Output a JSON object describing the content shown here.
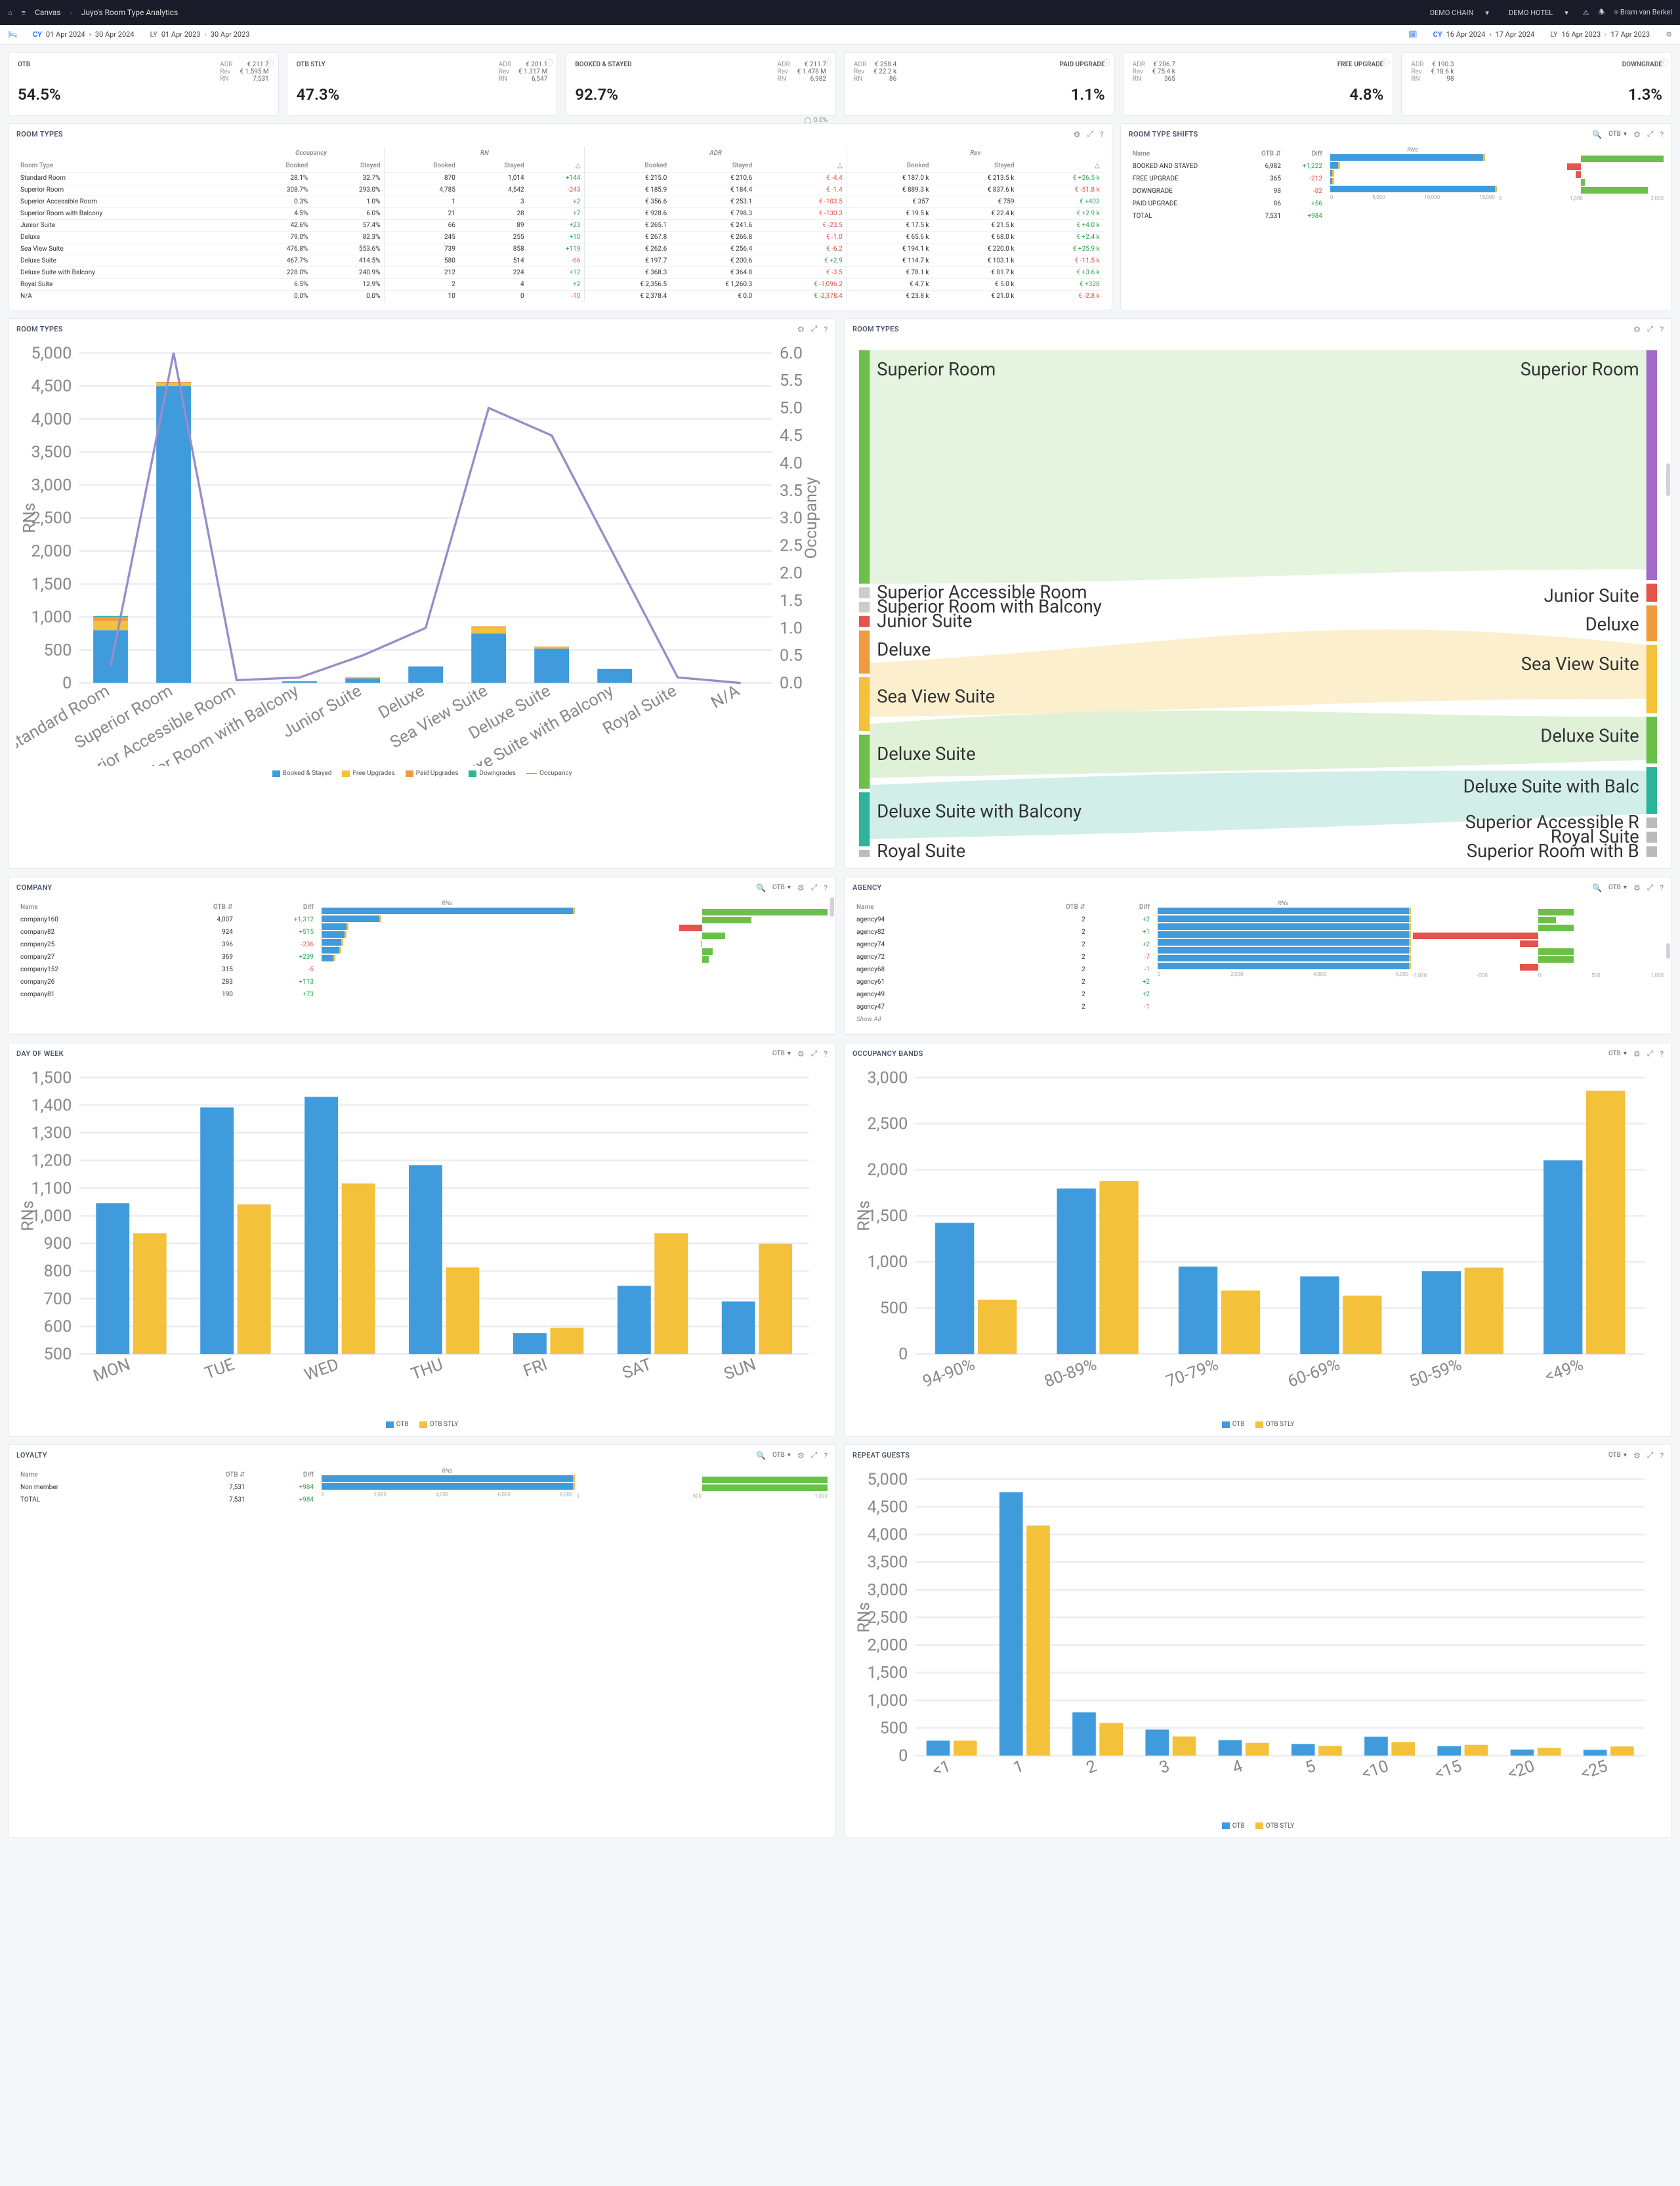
{
  "colors": {
    "blue": "#3f9bdc",
    "yellow": "#f3c13a",
    "teal": "#2fb39a",
    "purple": "#9a8cc8",
    "red": "#e2544c",
    "green": "#6cc04a",
    "grid": "#eceef4",
    "orange": "#f29b3e",
    "violet": "#a06ac6"
  },
  "topbar": {
    "canvas": "Canvas",
    "title": "Juyo's Room Type Analytics",
    "chain": "DEMO CHAIN",
    "hotel": "DEMO HOTEL",
    "user": "Bram van Berkel"
  },
  "datebar": {
    "cy1_label": "CY",
    "cy1_from": "01 Apr 2024",
    "cy1_to": "30 Apr 2024",
    "ly1_label": "LY",
    "ly1_from": "01 Apr 2023",
    "ly1_to": "30 Apr 2023",
    "cy2_label": "CY",
    "cy2_from": "16 Apr 2024",
    "cy2_to": "17 Apr 2024",
    "ly2_label": "LY",
    "ly2_from": "16 Apr 2023",
    "ly2_to": "17 Apr 2023"
  },
  "kpi": [
    {
      "name": "OTB",
      "value": "54.5%",
      "adr": "€ 211.7",
      "rev": "€ 1.595 M",
      "rn": "7,531"
    },
    {
      "name": "OTB STLY",
      "value": "47.3%",
      "adr": "€ 201.1",
      "rev": "€ 1.317 M",
      "rn": "6,547"
    },
    {
      "name": "BOOKED & STAYED",
      "value": "92.7%",
      "adr": "€ 211.7",
      "rev": "€ 1.478 M",
      "rn": "6,982"
    },
    {
      "name": "PAID UPGRADE",
      "value": "1.1%",
      "adr": "€ 258.4",
      "rev": "€ 22.2 k",
      "rn": "86"
    },
    {
      "name": "FREE UPGRADE",
      "value": "4.8%",
      "adr": "€ 206.7",
      "rev": "€ 75.4 k",
      "rn": "365"
    },
    {
      "name": "DOWNGRADE",
      "value": "1.3%",
      "adr": "€ 190.3",
      "rev": "€ 18.6 k",
      "rn": "98"
    }
  ],
  "occ_badge": "0.0%",
  "roomtypes_table": {
    "title": "ROOM TYPES",
    "groups": [
      "Occupancy",
      "RN",
      "ADR",
      "Rev"
    ],
    "headers": [
      "Room Type",
      "Booked",
      "Stayed",
      "Booked",
      "Stayed",
      "△",
      "Booked",
      "Stayed",
      "△",
      "Booked",
      "Stayed",
      "△"
    ],
    "rows": [
      [
        "Standard Room",
        "28.1%",
        "32.7%",
        "870",
        "1,014",
        "+144",
        "€ 215.0",
        "€ 210.6",
        "€ -4.4",
        "€ 187.0 k",
        "€ 213.5 k",
        "€ +26.5 k"
      ],
      [
        "Superior Room",
        "308.7%",
        "293.0%",
        "4,785",
        "4,542",
        "-243",
        "€ 185.9",
        "€ 184.4",
        "€ -1.4",
        "€ 889.3 k",
        "€ 837.6 k",
        "€ -51.8 k"
      ],
      [
        "Superior Accessible Room",
        "0.3%",
        "1.0%",
        "1",
        "3",
        "+2",
        "€ 356.6",
        "€ 253.1",
        "€ -103.5",
        "€ 357",
        "€ 759",
        "€ +403"
      ],
      [
        "Superior Room with Balcony",
        "4.5%",
        "6.0%",
        "21",
        "28",
        "+7",
        "€ 928.6",
        "€ 798.3",
        "€ -130.3",
        "€ 19.5 k",
        "€ 22.4 k",
        "€ +2.9 k"
      ],
      [
        "Junior Suite",
        "42.6%",
        "57.4%",
        "66",
        "89",
        "+23",
        "€ 265.1",
        "€ 241.6",
        "€ -23.5",
        "€ 17.5 k",
        "€ 21.5 k",
        "€ +4.0 k"
      ],
      [
        "Deluxe",
        "79.0%",
        "82.3%",
        "245",
        "255",
        "+10",
        "€ 267.8",
        "€ 266.8",
        "€ -1.0",
        "€ 65.6 k",
        "€ 68.0 k",
        "€ +2.4 k"
      ],
      [
        "Sea View Suite",
        "476.8%",
        "553.6%",
        "739",
        "858",
        "+119",
        "€ 262.6",
        "€ 256.4",
        "€ -6.2",
        "€ 194.1 k",
        "€ 220.0 k",
        "€ +25.9 k"
      ],
      [
        "Deluxe Suite",
        "467.7%",
        "414.5%",
        "580",
        "514",
        "-66",
        "€ 197.7",
        "€ 200.6",
        "€ +2.9",
        "€ 114.7 k",
        "€ 103.1 k",
        "€ -11.5 k"
      ],
      [
        "Deluxe Suite with Balcony",
        "228.0%",
        "240.9%",
        "212",
        "224",
        "+12",
        "€ 368.3",
        "€ 364.8",
        "€ -3.5",
        "€ 78.1 k",
        "€ 81.7 k",
        "€ +3.6 k"
      ],
      [
        "Royal Suite",
        "6.5%",
        "12.9%",
        "2",
        "4",
        "+2",
        "€ 2,356.5",
        "€ 1,260.3",
        "€ -1,096.2",
        "€ 4.7 k",
        "€ 5.0 k",
        "€ +328"
      ],
      [
        "N/A",
        "0.0%",
        "0.0%",
        "10",
        "0",
        "-10",
        "€ 2,378.4",
        "€ 0.0",
        "€ -2,378.4",
        "€ 23.8 k",
        "€ 21.0 k",
        "€ -2.8 k"
      ]
    ],
    "delta_sign": [
      [
        true,
        false,
        true
      ],
      [
        false,
        false,
        false
      ],
      [
        true,
        false,
        true
      ],
      [
        true,
        false,
        true
      ],
      [
        true,
        false,
        true
      ],
      [
        true,
        false,
        true
      ],
      [
        true,
        false,
        true
      ],
      [
        false,
        true,
        false
      ],
      [
        true,
        false,
        true
      ],
      [
        true,
        false,
        true
      ],
      [
        false,
        false,
        false
      ]
    ]
  },
  "shifts": {
    "title": "ROOM TYPE SHIFTS",
    "metric": "OTB",
    "col_name": "Name",
    "col_otb": "OTB",
    "col_diff": "Diff",
    "axis_label": "RNs",
    "rows": [
      {
        "name": "BOOKED AND STAYED",
        "otb": "6,982",
        "diff": "+1,222"
      },
      {
        "name": "FREE UPGRADE",
        "otb": "365",
        "diff": "-212"
      },
      {
        "name": "DOWNGRADE",
        "otb": "98",
        "diff": "-82"
      },
      {
        "name": "PAID UPGRADE",
        "otb": "86",
        "diff": "+56"
      },
      {
        "name": "TOTAL",
        "otb": "7,531",
        "diff": "+984"
      }
    ],
    "ticks1": [
      "0",
      "5,000",
      "10,000",
      "15,000"
    ],
    "ticks2": [
      "0",
      "1,000",
      "2,000"
    ]
  },
  "rt_chart": {
    "title": "ROOM TYPES",
    "categories": [
      "Standard Room",
      "Superior Room",
      "Superior Accessible Room",
      "Superior Room with Balcony",
      "Junior Suite",
      "Deluxe",
      "Sea View Suite",
      "Deluxe Suite",
      "Deluxe Suite with Balcony",
      "Royal Suite",
      "N/A"
    ],
    "booked_stayed": [
      800,
      4500,
      3,
      25,
      70,
      250,
      750,
      520,
      215,
      4,
      0
    ],
    "free": [
      140,
      40,
      0,
      2,
      18,
      5,
      90,
      20,
      5,
      0,
      0
    ],
    "paid": [
      60,
      20,
      0,
      1,
      1,
      0,
      18,
      10,
      4,
      0,
      0
    ],
    "downgrades": [
      14,
      0,
      0,
      0,
      0,
      0,
      0,
      0,
      0,
      0,
      0
    ],
    "occupancy": [
      0.3,
      6.0,
      0.05,
      0.1,
      0.5,
      1.0,
      5.0,
      4.5,
      2.3,
      0.1,
      0.0
    ],
    "y_ticks": [
      "0",
      "500",
      "1,000",
      "1,500",
      "2,000",
      "2,500",
      "3,000",
      "3,500",
      "4,000",
      "4,500",
      "5,000"
    ],
    "y2_ticks": [
      "0.0",
      "0.5",
      "1.0",
      "1.5",
      "2.0",
      "2.5",
      "3.0",
      "3.5",
      "4.0",
      "4.5",
      "5.0",
      "5.5",
      "6.0"
    ],
    "y_label": "RNs",
    "y2_label": "Occupancy",
    "legend": [
      "Booked & Stayed",
      "Free Upgrades",
      "Paid Upgrades",
      "Downgrades",
      "Occupancy"
    ]
  },
  "sankey": {
    "title": "ROOM TYPES",
    "left": [
      "Superior Room",
      "Superior Accessible Room",
      "Superior Room with Balcony",
      "Junior Suite",
      "Deluxe",
      "Sea View Suite",
      "Deluxe Suite",
      "Deluxe Suite with Balcony",
      "Royal Suite"
    ],
    "right": [
      "Superior Room",
      "Junior Suite",
      "Deluxe",
      "Sea View Suite",
      "Deluxe Suite",
      "Deluxe Suite with Balc",
      "Superior Accessible R",
      "Royal Suite",
      "Superior Room with B"
    ]
  },
  "company": {
    "title": "COMPANY",
    "metric": "OTB",
    "col_name": "Name",
    "col_otb": "OTB",
    "col_diff": "Diff",
    "axis_label": "RNs",
    "rows": [
      {
        "name": "company160",
        "otb": "4,007",
        "diff": "+1,312"
      },
      {
        "name": "company82",
        "otb": "924",
        "diff": "+515"
      },
      {
        "name": "company25",
        "otb": "396",
        "diff": "-236"
      },
      {
        "name": "company27",
        "otb": "369",
        "diff": "+239"
      },
      {
        "name": "company152",
        "otb": "315",
        "diff": "-5"
      },
      {
        "name": "company26",
        "otb": "283",
        "diff": "+113"
      },
      {
        "name": "company81",
        "otb": "190",
        "diff": "+73"
      }
    ]
  },
  "agency": {
    "title": "AGENCY",
    "metric": "OTB",
    "rows": [
      {
        "name": "agency94",
        "otb": "2",
        "diff": "+2"
      },
      {
        "name": "agency82",
        "otb": "2",
        "diff": "+1"
      },
      {
        "name": "agency74",
        "otb": "2",
        "diff": "+2"
      },
      {
        "name": "agency72",
        "otb": "2",
        "diff": "-7"
      },
      {
        "name": "agency68",
        "otb": "2",
        "diff": "-1"
      },
      {
        "name": "agency61",
        "otb": "2",
        "diff": "+2"
      },
      {
        "name": "agency49",
        "otb": "2",
        "diff": "+2"
      },
      {
        "name": "agency47",
        "otb": "2",
        "diff": "-1"
      }
    ],
    "show_all": "Show All",
    "ticks1": [
      "0",
      "2,000",
      "4,000",
      "6,000"
    ],
    "ticks2": [
      "-1,000",
      "-500",
      "0",
      "500",
      "1,000"
    ]
  },
  "dow": {
    "title": "DAY OF WEEK",
    "metric": "OTB",
    "cats": [
      "MON",
      "TUE",
      "WED",
      "THU",
      "FRI",
      "SAT",
      "SUN"
    ],
    "otb": [
      1075,
      1440,
      1480,
      1220,
      580,
      760,
      700
    ],
    "stly": [
      960,
      1070,
      1150,
      830,
      600,
      960,
      920
    ],
    "y_ticks": [
      "500",
      "600",
      "700",
      "800",
      "900",
      "1,000",
      "1,100",
      "1,200",
      "1,300",
      "1,400",
      "1,500"
    ],
    "y_label": "RNs",
    "legend": [
      "OTB",
      "OTB STLY"
    ]
  },
  "occband": {
    "title": "OCCUPANCY BANDS",
    "metric": "OTB",
    "cats": [
      "94-90%",
      "80-89%",
      "70-79%",
      "60-69%",
      "50-59%",
      "<49%"
    ],
    "otb": [
      1260,
      1590,
      840,
      745,
      795,
      1860
    ],
    "stly": [
      520,
      1660,
      610,
      560,
      830,
      2530
    ],
    "y_ticks": [
      "0",
      "500",
      "1,000",
      "1,500",
      "2,000",
      "2,500",
      "3,000"
    ],
    "y_label": "RNs",
    "legend": [
      "OTB",
      "OTB STLY"
    ]
  },
  "loyalty": {
    "title": "LOYALTY",
    "metric": "OTB",
    "col_name": "Name",
    "col_otb": "OTB",
    "col_diff": "Diff",
    "axis_label": "RNs",
    "rows": [
      {
        "name": "Non member",
        "otb": "7,531",
        "diff": "+984"
      },
      {
        "name": "TOTAL",
        "otb": "7,531",
        "diff": "+984"
      }
    ],
    "ticks1": [
      "0",
      "2,000",
      "4,000",
      "6,000",
      "8,000"
    ],
    "ticks2": [
      "0",
      "500",
      "1,000"
    ]
  },
  "repeat": {
    "title": "REPEAT GUESTS",
    "metric": "OTB",
    "cats": [
      "<1",
      "1",
      "2",
      "3",
      "4",
      "5",
      "<10",
      "<15",
      "<20",
      "<25"
    ],
    "otb": [
      270,
      4750,
      780,
      470,
      280,
      210,
      340,
      170,
      110,
      105
    ],
    "stly": [
      270,
      4150,
      590,
      345,
      230,
      175,
      245,
      195,
      140,
      165
    ],
    "y_ticks": [
      "0",
      "500",
      "1,000",
      "1,500",
      "2,000",
      "2,500",
      "3,000",
      "3,500",
      "4,000",
      "4,500",
      "5,000"
    ],
    "y_label": "RNs",
    "legend": [
      "OTB",
      "OTB STLY"
    ]
  }
}
